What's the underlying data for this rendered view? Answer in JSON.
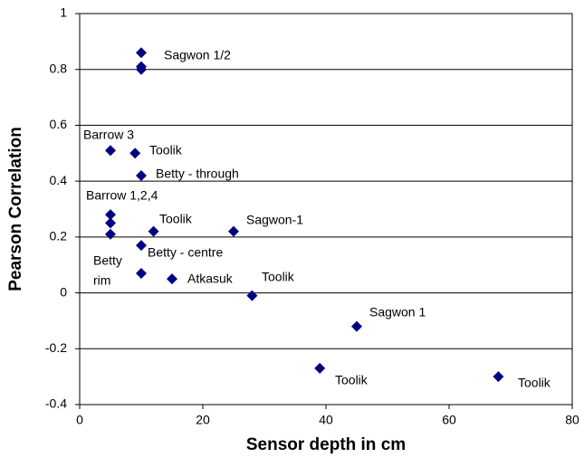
{
  "chart_data": {
    "type": "scatter",
    "x_label": "Sensor depth in cm",
    "y_label": "Pearson Correlation",
    "x": [
      10,
      10,
      10,
      5,
      9,
      10,
      5,
      5,
      5,
      12,
      25,
      10,
      10,
      15,
      28,
      45,
      39,
      68
    ],
    "values": [
      0.86,
      0.81,
      0.8,
      0.51,
      0.5,
      0.42,
      0.28,
      0.25,
      0.21,
      0.22,
      0.22,
      0.17,
      0.07,
      0.05,
      -0.01,
      -0.12,
      -0.27,
      -0.3
    ],
    "color": "#000080",
    "xlim": [
      0,
      80
    ],
    "xticks": [
      0,
      20,
      40,
      60,
      80
    ],
    "ylim": [
      -0.4,
      1
    ],
    "yticks": [
      -0.4,
      -0.2,
      0,
      0.2,
      0.4,
      0.6,
      0.8,
      1
    ],
    "grid": true,
    "annotations": [
      "Sagwon 1/2",
      "Barrow 3",
      "Toolik",
      "Betty - through",
      "Barrow 1,2,4",
      "Toolik",
      "Sagwon-1",
      "Betty - centre",
      "Betty",
      "rim",
      "Atkasuk",
      "Toolik",
      "Sagwon 1",
      "Toolik",
      "Toolik"
    ]
  }
}
